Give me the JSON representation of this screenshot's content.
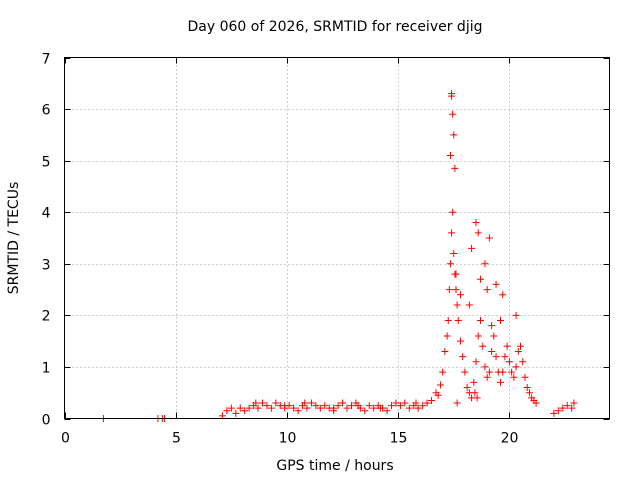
{
  "chart_data": {
    "type": "scatter",
    "title": "Day 060 of 2026, SRMTID for receiver djig",
    "xlabel": "GPS time / hours",
    "ylabel": "SRMTID / TECUs",
    "xlim": [
      0,
      24.5
    ],
    "ylim": [
      0,
      7
    ],
    "xticks": [
      0,
      5,
      10,
      15,
      20
    ],
    "yticks": [
      0,
      1,
      2,
      3,
      4,
      5,
      6,
      7
    ],
    "xtick_labels": [
      "0",
      "5",
      "10",
      "15",
      "20"
    ],
    "ytick_labels": [
      "0",
      "1",
      "2",
      "3",
      "4",
      "5",
      "6",
      "7"
    ],
    "grid": true,
    "marker": "+",
    "series": [
      {
        "name": "SRMTID",
        "color": "#ff0000",
        "x": [
          1.75,
          4.2,
          4.4,
          4.5,
          7.1,
          7.3,
          7.5,
          7.7,
          7.9,
          8.1,
          8.3,
          8.5,
          8.7,
          8.9,
          9.1,
          9.3,
          9.5,
          9.7,
          9.9,
          10.1,
          10.3,
          10.5,
          10.7,
          10.9,
          11.1,
          11.3,
          11.5,
          11.7,
          11.9,
          12.1,
          12.3,
          12.5,
          12.7,
          12.9,
          13.1,
          13.3,
          13.5,
          13.7,
          13.9,
          14.1,
          14.3,
          14.5,
          14.7,
          14.9,
          15.1,
          15.3,
          15.5,
          15.7,
          15.9,
          16.1,
          16.3,
          16.5,
          16.7,
          16.9,
          17.0,
          17.1,
          17.2,
          17.25,
          17.3,
          17.35,
          17.4,
          17.45,
          17.5,
          17.55,
          17.6,
          17.65,
          17.7,
          17.8,
          17.9,
          18.0,
          18.1,
          18.2,
          18.3,
          18.4,
          18.5,
          18.6,
          18.7,
          18.8,
          18.9,
          19.0,
          19.1,
          19.2,
          19.3,
          19.4,
          19.5,
          19.6,
          19.7,
          19.8,
          19.9,
          20.0,
          20.1,
          20.2,
          20.3,
          20.4,
          20.5,
          20.6,
          20.7,
          20.8,
          20.9,
          21.0,
          21.1,
          21.2,
          22.0,
          22.2,
          22.4,
          22.6,
          22.8,
          22.9,
          17.4,
          17.4,
          17.45,
          17.5,
          17.35,
          17.55,
          18.5,
          18.6,
          19.1,
          18.3,
          18.9,
          19.4,
          19.7,
          20.3,
          17.6,
          17.8,
          18.2,
          18.7,
          19.0,
          19.2,
          19.6,
          18.45,
          18.55,
          17.65,
          16.8,
          15.8,
          14.2,
          13.2,
          12.1,
          10.8,
          9.9,
          8.6
        ],
        "y": [
          0.0,
          0.0,
          0.0,
          0.0,
          0.05,
          0.15,
          0.2,
          0.1,
          0.2,
          0.15,
          0.2,
          0.25,
          0.2,
          0.3,
          0.25,
          0.2,
          0.3,
          0.25,
          0.2,
          0.25,
          0.2,
          0.15,
          0.25,
          0.2,
          0.3,
          0.25,
          0.2,
          0.25,
          0.2,
          0.15,
          0.25,
          0.3,
          0.2,
          0.25,
          0.3,
          0.2,
          0.15,
          0.25,
          0.2,
          0.25,
          0.2,
          0.15,
          0.25,
          0.3,
          0.25,
          0.3,
          0.2,
          0.25,
          0.2,
          0.25,
          0.3,
          0.35,
          0.5,
          0.65,
          0.9,
          1.3,
          1.6,
          1.9,
          2.5,
          3.0,
          3.6,
          4.0,
          3.2,
          2.8,
          2.5,
          2.2,
          1.9,
          1.5,
          1.2,
          0.9,
          0.6,
          0.5,
          0.4,
          0.7,
          1.1,
          1.6,
          1.9,
          1.4,
          1.0,
          0.8,
          0.9,
          1.3,
          1.6,
          1.2,
          0.9,
          0.7,
          0.9,
          1.2,
          1.4,
          1.1,
          0.9,
          0.8,
          1.0,
          1.3,
          1.4,
          1.1,
          0.8,
          0.6,
          0.5,
          0.4,
          0.35,
          0.3,
          0.1,
          0.15,
          0.2,
          0.25,
          0.2,
          0.3,
          6.3,
          6.25,
          5.9,
          5.5,
          5.1,
          4.85,
          3.8,
          3.6,
          3.5,
          3.3,
          3.0,
          2.6,
          2.4,
          2.0,
          2.8,
          2.4,
          2.2,
          2.7,
          2.5,
          1.8,
          1.9,
          0.5,
          0.4,
          0.3,
          0.45,
          0.3,
          0.2,
          0.25,
          0.2,
          0.3,
          0.25,
          0.3
        ]
      }
    ]
  }
}
